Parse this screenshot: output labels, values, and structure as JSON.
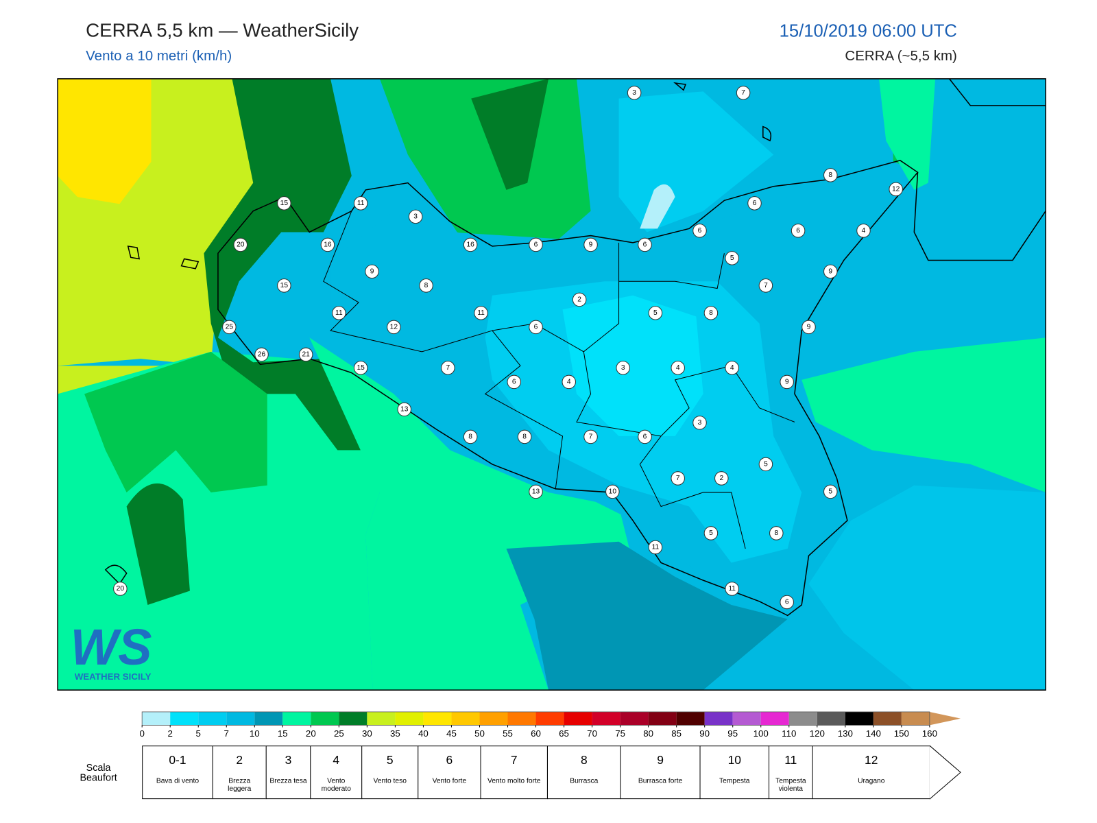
{
  "header": {
    "title": "CERRA 5,5 km — WeatherSicily",
    "subtitle": "Vento a 10 metri (km/h)",
    "date": "15/10/2019 06:00 UTC",
    "model": "CERRA (~5,5 km)"
  },
  "stations": [
    3,
    7,
    8,
    12,
    15,
    11,
    3,
    6,
    20,
    16,
    16,
    6,
    9,
    6,
    6,
    6,
    4,
    5,
    9,
    15,
    8,
    7,
    9,
    2,
    11,
    11,
    5,
    8,
    25,
    12,
    6,
    9,
    26,
    21,
    15,
    7,
    3,
    4,
    4,
    6,
    4,
    9,
    13,
    3,
    8,
    8,
    7,
    6,
    5,
    7,
    2,
    13,
    10,
    5,
    5,
    8,
    11,
    11,
    6,
    20
  ],
  "logo": {
    "mark": "WS",
    "name": "WEATHER SICILY"
  },
  "legend": {
    "ticks": [
      0,
      2,
      5,
      7,
      10,
      15,
      20,
      25,
      30,
      35,
      40,
      45,
      50,
      55,
      60,
      65,
      70,
      75,
      80,
      85,
      90,
      95,
      100,
      110,
      120,
      130,
      140,
      150,
      160
    ],
    "colors": [
      "#b4f0fa",
      "#00e1fa",
      "#00cdf0",
      "#00b9e1",
      "#0096b4",
      "#00f5a0",
      "#00c850",
      "#007d28",
      "#c8f01e",
      "#e1f000",
      "#ffe600",
      "#ffc800",
      "#ffa000",
      "#ff7800",
      "#ff3c00",
      "#e60000",
      "#d20028",
      "#aa0028",
      "#820014",
      "#500000",
      "#7832c8",
      "#b45ad2",
      "#e628d2",
      "#8c8c8c",
      "#5a5a5a",
      "#000000",
      "#8c5028",
      "#c88c50"
    ],
    "arrow_color": "#d2965a"
  },
  "beaufort": {
    "label": "Scala Beaufort",
    "classes": [
      {
        "number": "0-1",
        "name": "Bava di vento"
      },
      {
        "number": "2",
        "name": "Brezza leggera"
      },
      {
        "number": "3",
        "name": "Brezza tesa"
      },
      {
        "number": "4",
        "name": "Vento moderato"
      },
      {
        "number": "5",
        "name": "Vento teso"
      },
      {
        "number": "6",
        "name": "Vento forte"
      },
      {
        "number": "7",
        "name": "Vento molto forte"
      },
      {
        "number": "8",
        "name": "Burrasca"
      },
      {
        "number": "9",
        "name": "Burrasca forte"
      },
      {
        "number": "10",
        "name": "Tempesta"
      },
      {
        "number": "11",
        "name": "Tempesta violenta"
      },
      {
        "number": "12",
        "name": "Uragano"
      }
    ]
  }
}
